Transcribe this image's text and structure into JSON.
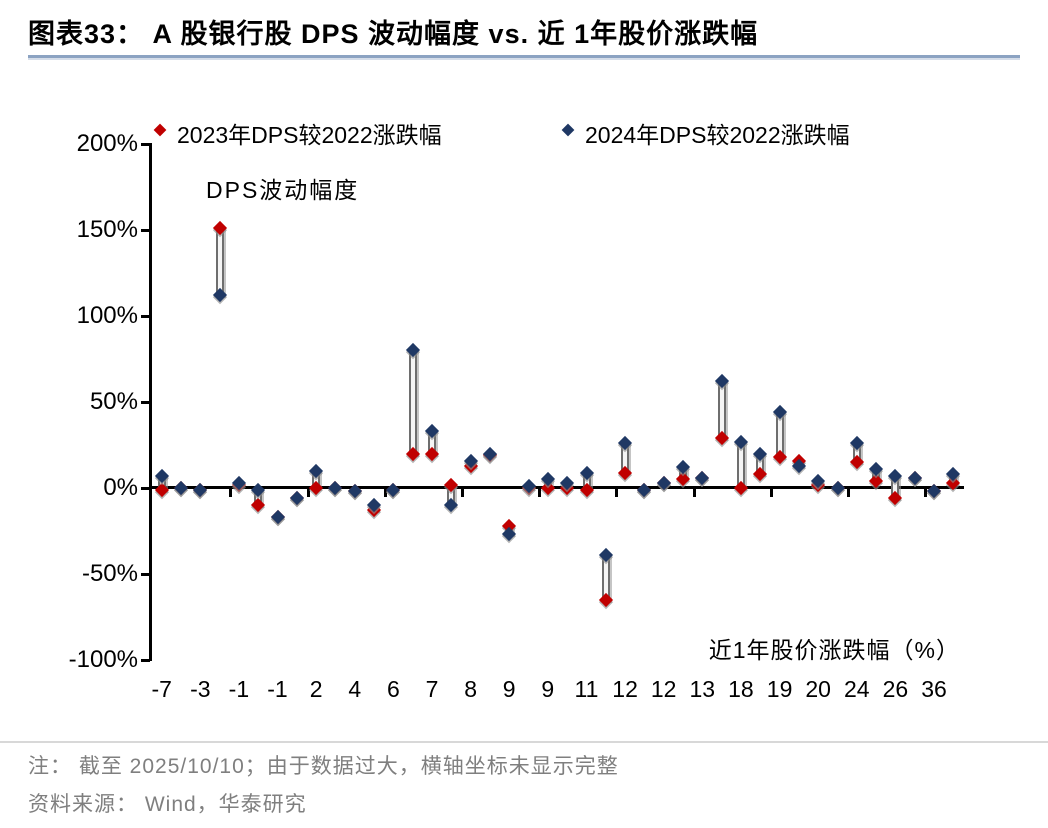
{
  "header": {
    "title": "图表33：  A 股银行股 DPS 波动幅度 vs. 近 1年股价涨跌幅"
  },
  "colors": {
    "series_2023_red": "#c00000",
    "series_2024_navy": "#1f3864",
    "connector_gray": "#6e6e6e",
    "title_rule_blue": "#8ca3c2",
    "note_gray": "#7f7f7f",
    "axis_black": "#000000"
  },
  "chart_data": {
    "type": "scatter",
    "subtype": "high-low-lines",
    "title": "图表33： A 股银行股 DPS 波动幅度 vs. 近 1年股价涨跌幅",
    "annotation": "DPS波动幅度",
    "xlabel": "近1年股价涨跌幅（%）",
    "ylabel": "DPS波动幅度",
    "ylim": [
      -100,
      200
    ],
    "grid": false,
    "legend_position": "top",
    "y_ticks": [
      {
        "value": 200,
        "label": "200%"
      },
      {
        "value": 150,
        "label": "150%"
      },
      {
        "value": 100,
        "label": "100%"
      },
      {
        "value": 50,
        "label": "50%"
      },
      {
        "value": 0,
        "label": "0%"
      },
      {
        "value": -50,
        "label": "-50%"
      },
      {
        "value": -100,
        "label": "-100%"
      }
    ],
    "series": [
      {
        "name": "2023年DPS较2022涨跌幅",
        "color": "#c00000"
      },
      {
        "name": "2024年DPS较2022涨跌幅",
        "color": "#1f3864"
      }
    ],
    "points": [
      {
        "x_label": "-7",
        "dps_2023_pct": -1,
        "dps_2024_pct": 7
      },
      {
        "x_label": "",
        "dps_2023_pct": 0,
        "dps_2024_pct": 0
      },
      {
        "x_label": "-3",
        "dps_2023_pct": -1,
        "dps_2024_pct": -1
      },
      {
        "x_label": "",
        "dps_2023_pct": 151,
        "dps_2024_pct": 112
      },
      {
        "x_label": "-1",
        "dps_2023_pct": 2,
        "dps_2024_pct": 3
      },
      {
        "x_label": "",
        "dps_2023_pct": -10,
        "dps_2024_pct": -1
      },
      {
        "x_label": "-1",
        "dps_2023_pct": -17,
        "dps_2024_pct": -17
      },
      {
        "x_label": "",
        "dps_2023_pct": -6,
        "dps_2024_pct": -6
      },
      {
        "x_label": "2",
        "dps_2023_pct": 0,
        "dps_2024_pct": 10
      },
      {
        "x_label": "",
        "dps_2023_pct": 0,
        "dps_2024_pct": 0
      },
      {
        "x_label": "4",
        "dps_2023_pct": -2,
        "dps_2024_pct": -2
      },
      {
        "x_label": "",
        "dps_2023_pct": -13,
        "dps_2024_pct": -10
      },
      {
        "x_label": "6",
        "dps_2023_pct": -1,
        "dps_2024_pct": -1
      },
      {
        "x_label": "",
        "dps_2023_pct": 20,
        "dps_2024_pct": 80
      },
      {
        "x_label": "7",
        "dps_2023_pct": 20,
        "dps_2024_pct": 33
      },
      {
        "x_label": "",
        "dps_2023_pct": 2,
        "dps_2024_pct": -10
      },
      {
        "x_label": "8",
        "dps_2023_pct": 13,
        "dps_2024_pct": 16
      },
      {
        "x_label": "",
        "dps_2023_pct": 19,
        "dps_2024_pct": 20
      },
      {
        "x_label": "9",
        "dps_2023_pct": -22,
        "dps_2024_pct": -27
      },
      {
        "x_label": "",
        "dps_2023_pct": 0,
        "dps_2024_pct": 1
      },
      {
        "x_label": "9",
        "dps_2023_pct": 0,
        "dps_2024_pct": 5
      },
      {
        "x_label": "",
        "dps_2023_pct": 0,
        "dps_2024_pct": 3
      },
      {
        "x_label": "11",
        "dps_2023_pct": -1,
        "dps_2024_pct": 9
      },
      {
        "x_label": "",
        "dps_2023_pct": -65,
        "dps_2024_pct": -39
      },
      {
        "x_label": "12",
        "dps_2023_pct": 9,
        "dps_2024_pct": 26
      },
      {
        "x_label": "",
        "dps_2023_pct": -1,
        "dps_2024_pct": -1
      },
      {
        "x_label": "12",
        "dps_2023_pct": 3,
        "dps_2024_pct": 3
      },
      {
        "x_label": "",
        "dps_2023_pct": 5,
        "dps_2024_pct": 12
      },
      {
        "x_label": "13",
        "dps_2023_pct": 6,
        "dps_2024_pct": 6
      },
      {
        "x_label": "",
        "dps_2023_pct": 29,
        "dps_2024_pct": 62
      },
      {
        "x_label": "18",
        "dps_2023_pct": 0,
        "dps_2024_pct": 27
      },
      {
        "x_label": "",
        "dps_2023_pct": 8,
        "dps_2024_pct": 20
      },
      {
        "x_label": "19",
        "dps_2023_pct": 18,
        "dps_2024_pct": 44
      },
      {
        "x_label": "",
        "dps_2023_pct": 16,
        "dps_2024_pct": 13
      },
      {
        "x_label": "20",
        "dps_2023_pct": 2,
        "dps_2024_pct": 4
      },
      {
        "x_label": "",
        "dps_2023_pct": 0,
        "dps_2024_pct": 0
      },
      {
        "x_label": "24",
        "dps_2023_pct": 15,
        "dps_2024_pct": 26
      },
      {
        "x_label": "",
        "dps_2023_pct": 4,
        "dps_2024_pct": 11
      },
      {
        "x_label": "26",
        "dps_2023_pct": -6,
        "dps_2024_pct": 7
      },
      {
        "x_label": "",
        "dps_2023_pct": 6,
        "dps_2024_pct": 6
      },
      {
        "x_label": "36",
        "dps_2023_pct": -2,
        "dps_2024_pct": -2
      },
      {
        "x_label": "",
        "dps_2023_pct": 3,
        "dps_2024_pct": 8
      }
    ]
  },
  "notes": {
    "note": "注： 截至 2025/10/10；由于数据过大，横轴坐标未显示完整",
    "source": "资料来源： Wind，华泰研究"
  }
}
